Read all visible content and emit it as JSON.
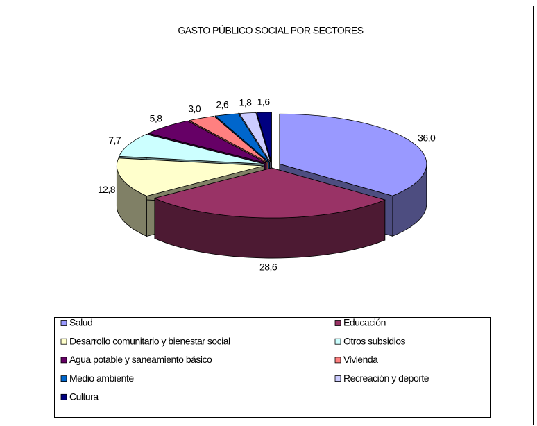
{
  "chart_data": {
    "type": "pie",
    "title": "GASTO PÚBLICO SOCIAL POR SECTORES",
    "categories": [
      "Salud",
      "Educación",
      "Desarrollo comunitario y bienestar social",
      "Otros subsidios",
      "Agua potable y saneamiento básico",
      "Vivienda",
      "Medio ambiente",
      "Recreación y deporte",
      "Cultura"
    ],
    "values": [
      36.0,
      28.6,
      12.8,
      7.7,
      5.8,
      3.0,
      2.6,
      1.8,
      1.6
    ],
    "value_labels": [
      "36,0",
      "28,6",
      "12,8",
      "7,7",
      "5,8",
      "3,0",
      "2,6",
      "1,8",
      "1,6"
    ],
    "colors": [
      "#9999ff",
      "#993366",
      "#ffffcc",
      "#ccffff",
      "#660066",
      "#ff8080",
      "#0066cc",
      "#ccccff",
      "#000080"
    ],
    "legend": "bottom"
  }
}
